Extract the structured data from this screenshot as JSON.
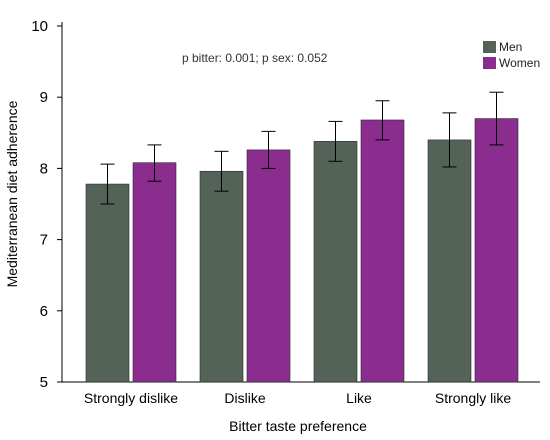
{
  "chart_data": {
    "type": "bar",
    "xlabel": "Bitter taste preference",
    "ylabel": "Mediterranean diet adherence",
    "ylim": [
      5,
      10
    ],
    "y_ticks": [
      "5",
      "6",
      "7",
      "8",
      "9",
      "10"
    ],
    "grid": false,
    "legend_position": "top-right",
    "annotation": "p bitter: 0.001;   p sex: 0.052",
    "categories": [
      "Strongly dislike",
      "Dislike",
      "Like",
      "Strongly like"
    ],
    "series": [
      {
        "name": "Men",
        "color": "#546358",
        "values": [
          7.78,
          7.96,
          8.38,
          8.4
        ],
        "error_low": [
          7.5,
          7.68,
          8.1,
          8.02
        ],
        "error_high": [
          8.06,
          8.24,
          8.66,
          8.78
        ]
      },
      {
        "name": "Women",
        "color": "#8b2d8f",
        "values": [
          8.08,
          8.26,
          8.68,
          8.7
        ],
        "error_low": [
          7.82,
          8.0,
          8.4,
          8.33
        ],
        "error_high": [
          8.33,
          8.52,
          8.95,
          9.07
        ]
      }
    ]
  }
}
